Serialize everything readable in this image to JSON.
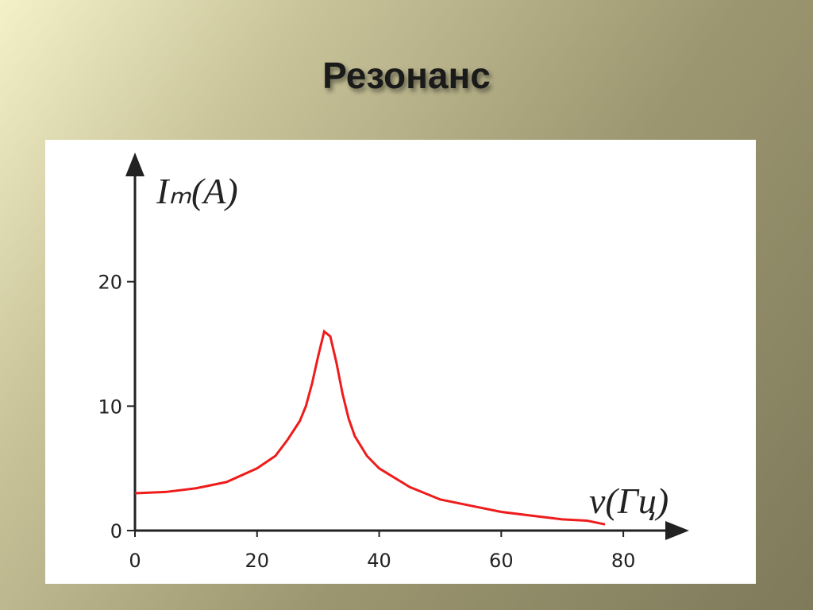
{
  "title": "Резонанс",
  "chart_data": {
    "type": "line",
    "xlabel": "ν(Гц)",
    "ylabel": "Iₘ(A)",
    "x": [
      0,
      5,
      10,
      15,
      20,
      23,
      25,
      27,
      28,
      29,
      30,
      31,
      32,
      33,
      34,
      35,
      36,
      38,
      40,
      42,
      45,
      50,
      55,
      60,
      65,
      70,
      74,
      77
    ],
    "series": [
      {
        "name": "Iₘ",
        "color": "#ee1c1c",
        "values": [
          3.0,
          3.1,
          3.4,
          3.9,
          5.0,
          6.0,
          7.3,
          8.8,
          10.0,
          11.8,
          14.0,
          16.0,
          15.6,
          13.5,
          11.0,
          9.0,
          7.6,
          6.0,
          5.0,
          4.4,
          3.5,
          2.5,
          2.0,
          1.5,
          1.2,
          0.9,
          0.8,
          0.5
        ]
      }
    ],
    "xlim": [
      0,
      90
    ],
    "ylim": [
      0,
      30
    ],
    "xticks": [
      0,
      20,
      40,
      60,
      80
    ],
    "yticks": [
      0,
      10,
      20
    ]
  }
}
